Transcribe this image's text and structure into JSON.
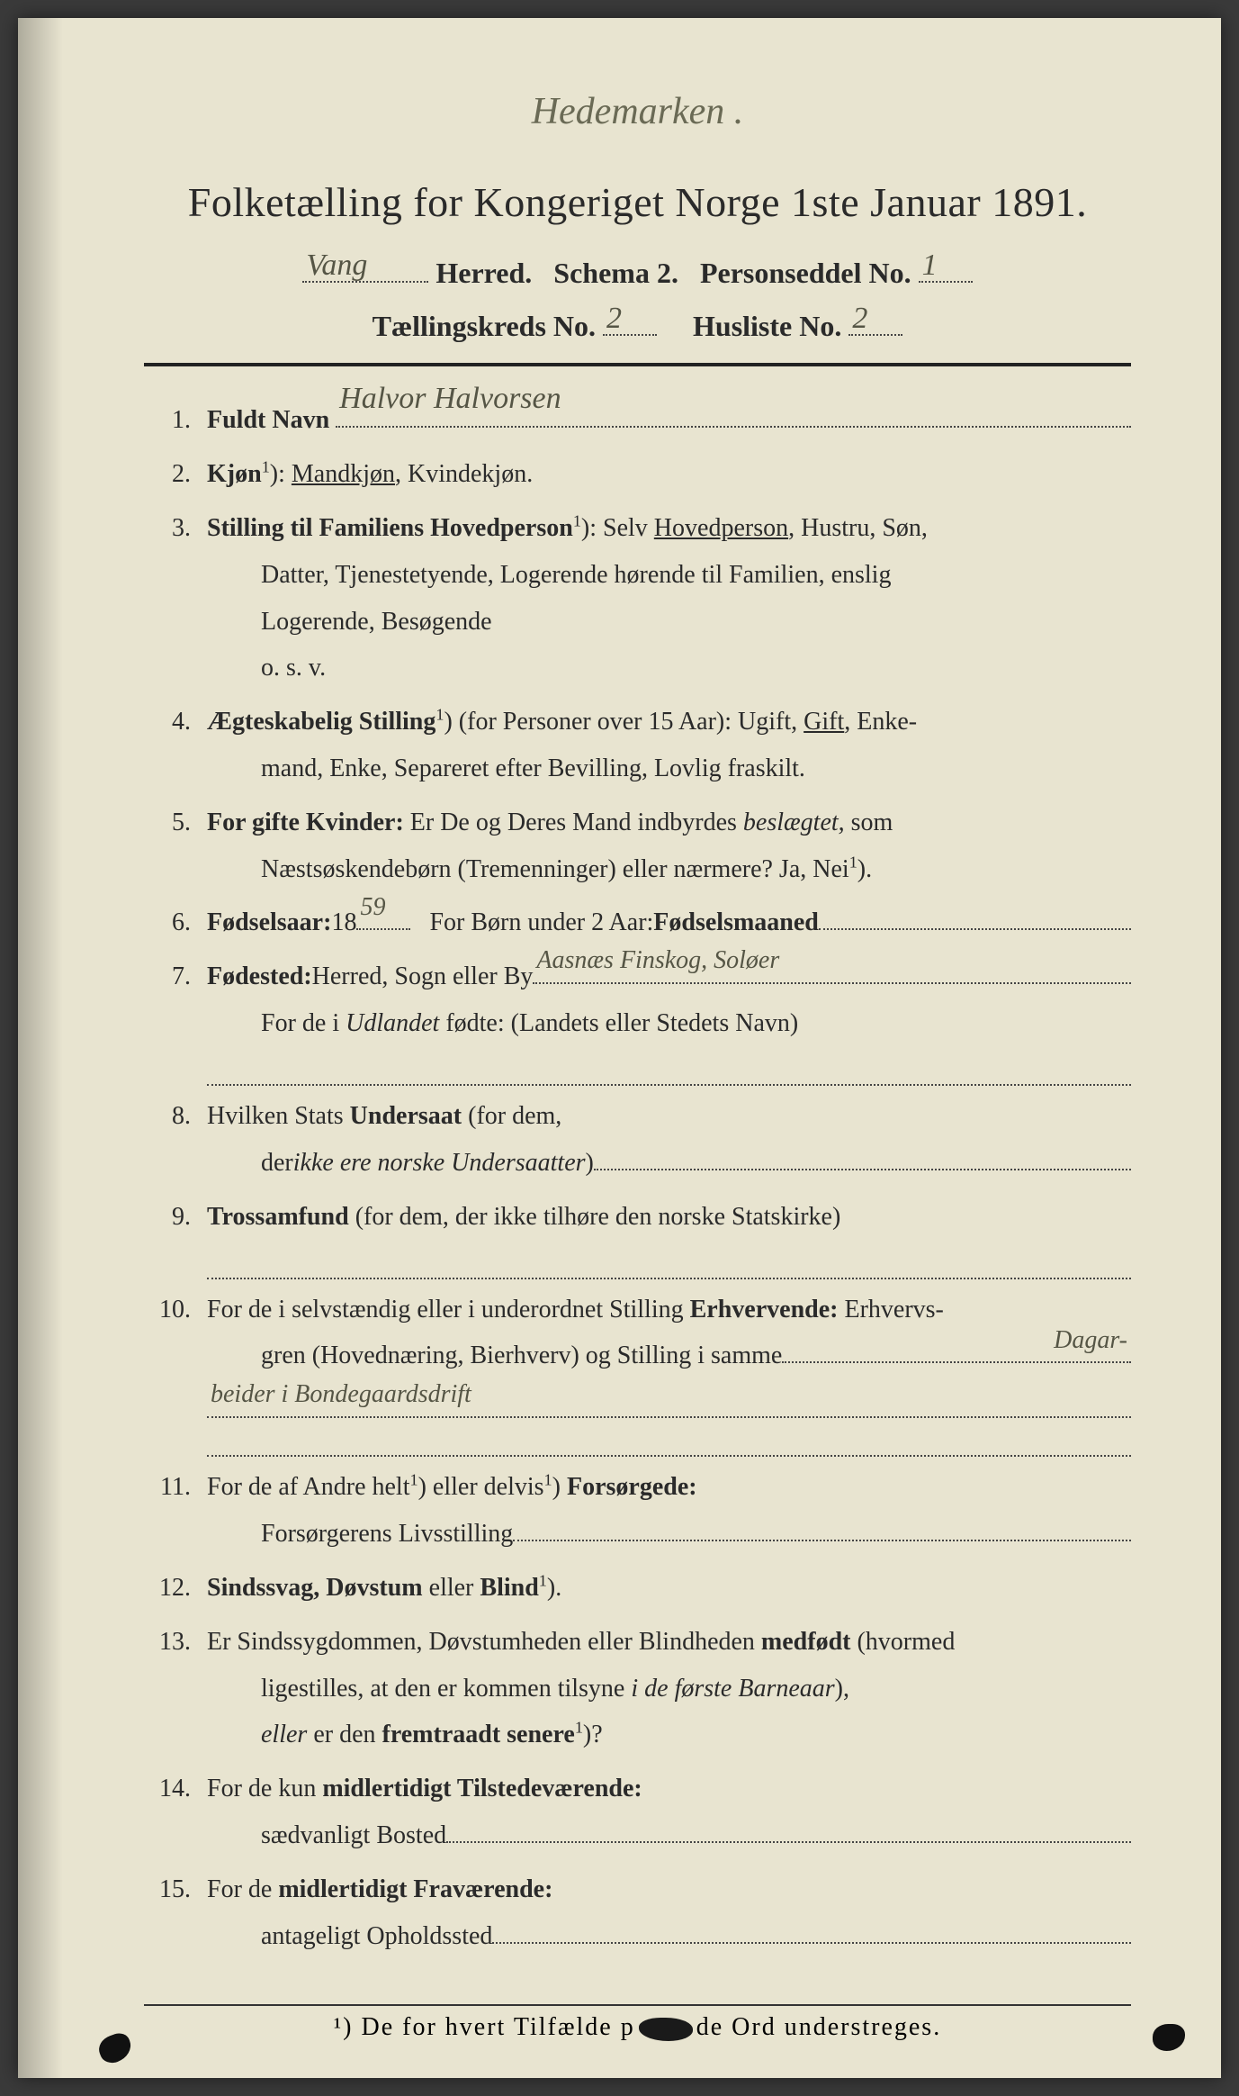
{
  "annotation_top": "Hedemarken .",
  "title": "Folketælling for Kongeriget Norge 1ste Januar 1891.",
  "header": {
    "herred_value": "Vang",
    "herred_label": "Herred.",
    "schema_label": "Schema 2.",
    "personseddel_label": "Personseddel No.",
    "personseddel_value": "1",
    "kreds_label": "Tællingskreds No.",
    "kreds_value": "2",
    "husliste_label": "Husliste No.",
    "husliste_value": "2"
  },
  "items": {
    "n1": "1.",
    "q1_label": "Fuldt Navn",
    "q1_value": "Halvor Halvorsen",
    "n2": "2.",
    "q2_label": "Kjøn",
    "q2_text": "Mandkjøn, Kvindekjøn.",
    "q2_underlined": "Mandkjøn",
    "n3": "3.",
    "q3_label": "Stilling til Familiens Hovedperson",
    "q3_text_a": "Selv ",
    "q3_underlined": "Hovedperson",
    "q3_text_b": ", Hustru, Søn,",
    "q3_line2": "Datter, Tjenestetyende, Logerende hørende til Familien, enslig",
    "q3_line3": "Logerende, Besøgende",
    "q3_line4": "o. s. v.",
    "n4": "4.",
    "q4_label": "Ægteskabelig Stilling",
    "q4_text_a": "(for Personer over 15 Aar): Ugift, ",
    "q4_underlined": "Gift",
    "q4_text_b": ", Enke-",
    "q4_line2": "mand, Enke, Separeret efter Bevilling, Lovlig fraskilt.",
    "n5": "5.",
    "q5_label": "For gifte Kvinder:",
    "q5_text": " Er De og Deres Mand indbyrdes ",
    "q5_ital": "beslægtet,",
    "q5_text_b": " som",
    "q5_line2": "Næstsøskendebørn (Tremenninger) eller nærmere?  Ja, Nei",
    "n6": "6.",
    "q6_label": "Fødselsaar:",
    "q6_year_prefix": " 18",
    "q6_year_value": "59",
    "q6_text2": "For Børn under 2 Aar: ",
    "q6_label2": "Fødselsmaaned",
    "n7": "7.",
    "q7_label": "Fødested:",
    "q7_text": " Herred, Sogn eller By",
    "q7_value": "Aasnæs Finskog, Soløer",
    "q7_line2a": "For de i ",
    "q7_line2_ital": "Udlandet",
    "q7_line2b": " fødte: (Landets eller Stedets Navn)",
    "n8": "8.",
    "q8_text_a": "Hvilken Stats ",
    "q8_label": "Undersaat",
    "q8_text_b": " (for dem,",
    "q8_line2_a": "der ",
    "q8_line2_ital": "ikke ere norske Undersaatter",
    "n9": "9.",
    "q9_label": "Trossamfund",
    "q9_text": "  (for  dem,  der  ikke  tilhøre  den  norske  Statskirke)",
    "n10": "10.",
    "q10_text_a": "For de i selvstændig eller i underordnet Stilling ",
    "q10_label": "Erhvervende:",
    "q10_text_b": " Erhvervs-",
    "q10_line2": "gren (Hovednæring, Bierhverv) og Stilling i samme",
    "q10_value1": "Dagar-",
    "q10_value2": "beider i Bondegaardsdrift",
    "n11": "11.",
    "q11_text_a": "For de af Andre helt",
    "q11_text_b": " eller delvis",
    "q11_label": " Forsørgede:",
    "q11_line2": "Forsørgerens Livsstilling",
    "n12": "12.",
    "q12_label": "Sindssvag, Døvstum",
    "q12_text": " eller ",
    "q12_label2": "Blind",
    "n13": "13.",
    "q13_text_a": "Er Sindssygdommen, Døvstumheden eller Blindheden ",
    "q13_label": "medfødt",
    "q13_text_b": " (hvormed",
    "q13_line2_a": "ligestilles, at den er kommen tilsyne ",
    "q13_line2_ital": "i de første Barneaar",
    "q13_line2_b": "),",
    "q13_line3_ital": "eller",
    "q13_line3_a": " er den ",
    "q13_line3_bold": "fremtraadt senere",
    "n14": "14.",
    "q14_text": "For de kun ",
    "q14_label": "midlertidigt Tilstedeværende:",
    "q14_line2": "sædvanligt Bosted",
    "n15": "15.",
    "q15_text": "For de ",
    "q15_label": "midlertidigt Fraværende:",
    "q15_line2": "antageligt Opholdssted"
  },
  "footnote": {
    "marker": "¹) ",
    "a": "De for hvert Tilfælde p",
    "b": "de Ord understreges."
  },
  "sup1": "1",
  "paren_close": "):",
  "paren_close2": ").",
  "period": "."
}
